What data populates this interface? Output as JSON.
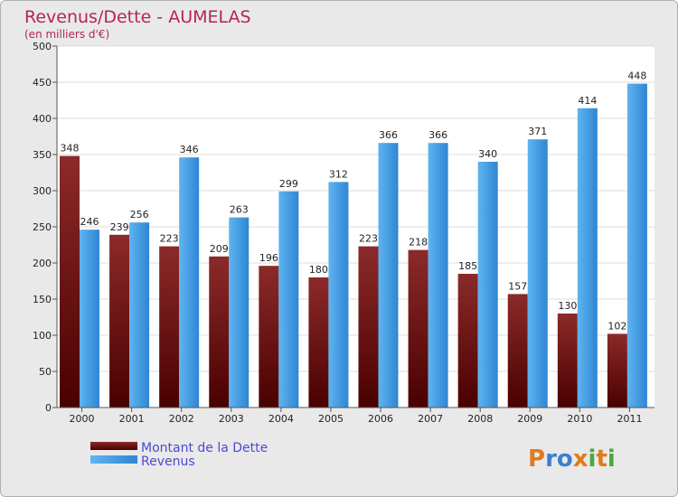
{
  "chart_data": {
    "type": "bar",
    "title": "Revenus/Dette - AUMELAS",
    "subtitle": "(en milliers d'€)",
    "categories": [
      "2000",
      "2001",
      "2002",
      "2003",
      "2004",
      "2005",
      "2006",
      "2007",
      "2008",
      "2009",
      "2010",
      "2011"
    ],
    "series": [
      {
        "name": "Montant de la Dette",
        "color": "#7a1d1d",
        "values": [
          348,
          239,
          223,
          209,
          196,
          180,
          223,
          218,
          185,
          157,
          130,
          102
        ]
      },
      {
        "name": "Revenus",
        "color": "#3d9be4",
        "values": [
          246,
          256,
          346,
          263,
          299,
          312,
          366,
          366,
          340,
          371,
          414,
          448
        ]
      }
    ],
    "ylim": [
      0,
      500
    ],
    "yticks": [
      0,
      50,
      100,
      150,
      200,
      250,
      300,
      350,
      400,
      450,
      500
    ],
    "grid": true,
    "legend_position": "bottom-left"
  },
  "brand": {
    "logo_text": "Proxiti"
  }
}
